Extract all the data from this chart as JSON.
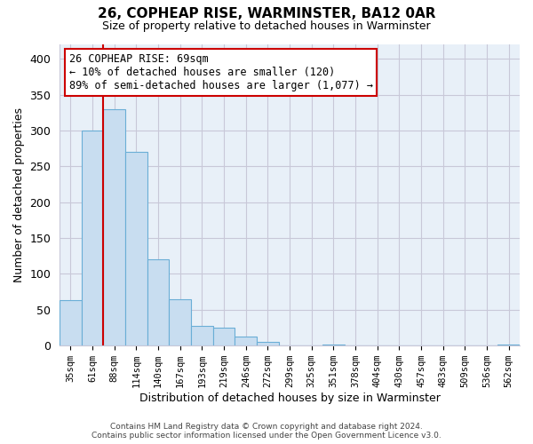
{
  "title": "26, COPHEAP RISE, WARMINSTER, BA12 0AR",
  "subtitle": "Size of property relative to detached houses in Warminster",
  "xlabel": "Distribution of detached houses by size in Warminster",
  "ylabel": "Number of detached properties",
  "bar_labels": [
    "35sqm",
    "61sqm",
    "88sqm",
    "114sqm",
    "140sqm",
    "167sqm",
    "193sqm",
    "219sqm",
    "246sqm",
    "272sqm",
    "299sqm",
    "325sqm",
    "351sqm",
    "378sqm",
    "404sqm",
    "430sqm",
    "457sqm",
    "483sqm",
    "509sqm",
    "536sqm",
    "562sqm"
  ],
  "bar_values": [
    63,
    300,
    330,
    270,
    120,
    65,
    28,
    25,
    13,
    5,
    0,
    0,
    2,
    0,
    0,
    0,
    0,
    0,
    0,
    0,
    2
  ],
  "bar_fill_color": "#c8ddf0",
  "bar_edge_color": "#6aaed6",
  "highlight_line_color": "#cc0000",
  "ylim": [
    0,
    420
  ],
  "yticks": [
    0,
    50,
    100,
    150,
    200,
    250,
    300,
    350,
    400
  ],
  "annotation_title": "26 COPHEAP RISE: 69sqm",
  "annotation_line1": "← 10% of detached houses are smaller (120)",
  "annotation_line2": "89% of semi-detached houses are larger (1,077) →",
  "annotation_box_color": "#ffffff",
  "annotation_box_edge": "#cc0000",
  "footer_line1": "Contains HM Land Registry data © Crown copyright and database right 2024.",
  "footer_line2": "Contains public sector information licensed under the Open Government Licence v3.0.",
  "bg_color": "#ffffff",
  "plot_bg_color": "#e8f0f8",
  "grid_color": "#c8c8d8"
}
